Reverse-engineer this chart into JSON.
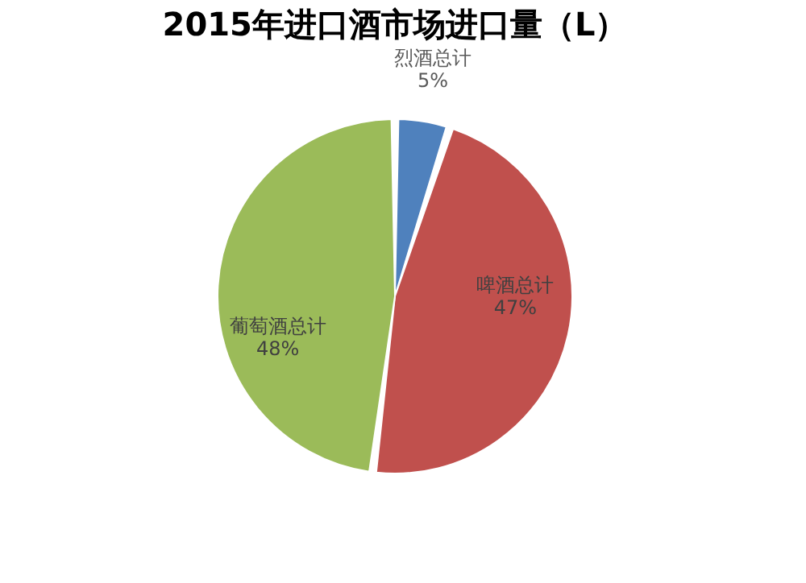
{
  "chart_data": {
    "type": "pie",
    "title": "2015年进口酒市场进口量（L）",
    "categories": [
      "烈酒总计",
      "啤酒总计",
      "葡萄酒总计"
    ],
    "values": [
      5,
      47,
      48
    ],
    "value_labels": [
      "5%",
      "47%",
      "48%"
    ],
    "colors": [
      "#4f81bd",
      "#c0504d",
      "#9bbb59"
    ],
    "legend": false
  }
}
